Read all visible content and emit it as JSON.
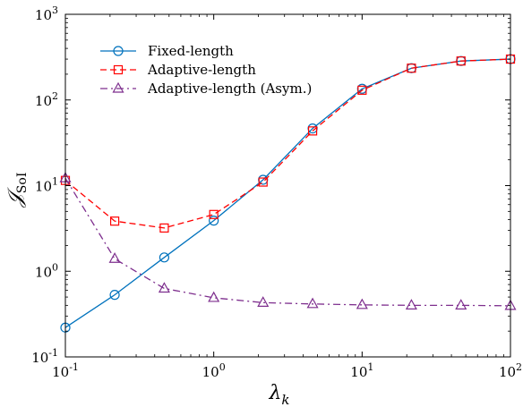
{
  "chart_data": {
    "type": "line",
    "x_scale": "log",
    "y_scale": "log",
    "xlim": [
      0.1,
      100
    ],
    "ylim": [
      0.1,
      1000
    ],
    "xlabel": {
      "main": "λ",
      "sub": "k"
    },
    "ylabel": {
      "main": "𝒥",
      "sub": "SoI"
    },
    "x_ticks": [
      {
        "value": 0.1,
        "base": "10",
        "exp": "-1"
      },
      {
        "value": 1,
        "base": "10",
        "exp": "0"
      },
      {
        "value": 10,
        "base": "10",
        "exp": "1"
      },
      {
        "value": 100,
        "base": "10",
        "exp": "2"
      }
    ],
    "y_ticks": [
      {
        "value": 0.1,
        "base": "10",
        "exp": "-1"
      },
      {
        "value": 1,
        "base": "10",
        "exp": "0"
      },
      {
        "value": 10,
        "base": "10",
        "exp": "1"
      },
      {
        "value": 100,
        "base": "10",
        "exp": "2"
      },
      {
        "value": 1000,
        "base": "10",
        "exp": "3"
      }
    ],
    "legend_position": "top-left",
    "x": [
      0.1,
      0.215,
      0.464,
      1,
      2.15,
      4.64,
      10,
      21.5,
      46.4,
      100
    ],
    "series": [
      {
        "name": "Fixed-length",
        "color": "#0072BD",
        "line_style": "solid",
        "marker": "circle",
        "values": [
          0.22,
          0.53,
          1.45,
          3.9,
          11.7,
          46.5,
          135,
          235,
          285,
          300
        ]
      },
      {
        "name": "Adaptive-length",
        "color": "#FF0000",
        "line_style": "dashed",
        "marker": "square",
        "values": [
          11.5,
          3.85,
          3.2,
          4.6,
          11,
          43.5,
          130,
          235,
          285,
          300
        ]
      },
      {
        "name": "Adaptive-length (Asym.)",
        "color": "#7E2F8E",
        "line_style": "dashdot",
        "marker": "triangle",
        "values": [
          12.2,
          1.4,
          0.63,
          0.49,
          0.43,
          0.415,
          0.405,
          0.4,
          0.4,
          0.395
        ]
      }
    ]
  }
}
